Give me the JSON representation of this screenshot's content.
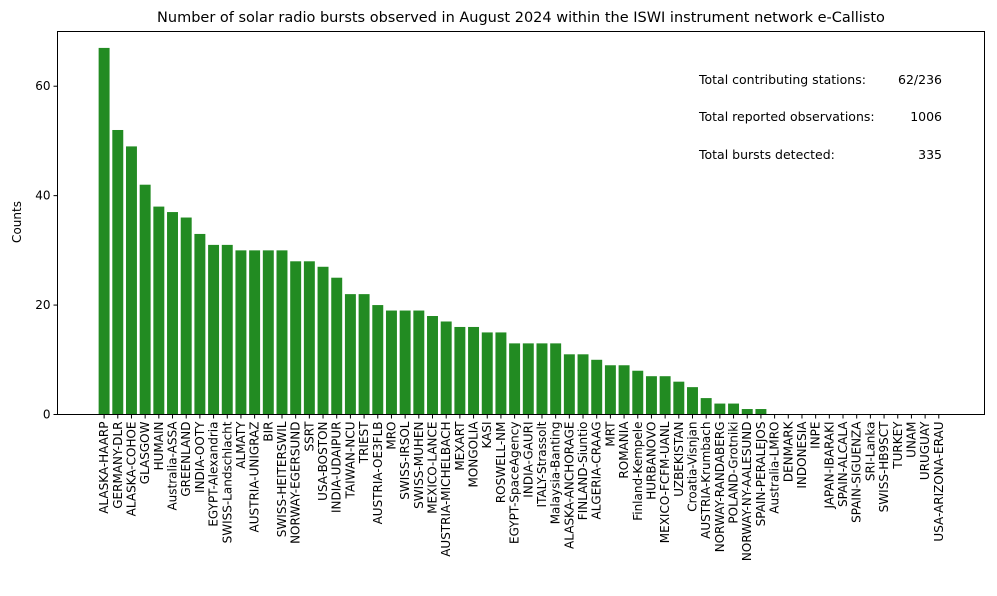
{
  "chart_data": {
    "type": "bar",
    "title": "Number of solar radio bursts observed in August 2024 within the ISWI instrument network e-Callisto",
    "xlabel": "",
    "ylabel": "Counts",
    "ylim": [
      0,
      70
    ],
    "yticks": [
      0,
      20,
      40,
      60
    ],
    "bar_color": "#228b22",
    "grid": false,
    "categories": [
      "ALASKA-HAARP",
      "GERMANY-DLR",
      "ALASKA-COHOE",
      "GLASGOW",
      "HUMAIN",
      "Australia-ASSA",
      "GREENLAND",
      "INDIA-OOTY",
      "EGYPT-Alexandria",
      "SWISS-Landschlacht",
      "ALMATY",
      "AUSTRIA-UNIGRAZ",
      "BIR",
      "SWISS-HEITERSWIL",
      "NORWAY-EGERSUND",
      "SSRT",
      "USA-BOSTON",
      "INDIA-UDAIPUR",
      "TAIWAN-NCU",
      "TRIEST",
      "AUSTRIA-OE3FLB",
      "MRO",
      "SWISS-IRSOL",
      "SWISS-MUHEN",
      "MEXICO-LANCE",
      "AUSTRIA-MICHELBACH",
      "MEXART",
      "MONGOLIA",
      "KASI",
      "ROSWELL-NM",
      "EGYPT-SpaceAgency",
      "INDIA-GAURI",
      "ITALY-Strassolt",
      "Malaysia-Banting",
      "ALASKA-ANCHORAGE",
      "FINLAND-Siuntio",
      "ALGERIA-CRAAG",
      "MRT",
      "ROMANIA",
      "Finland-Kempele",
      "HURBANOVO",
      "MEXICO-FCFM-UANL",
      "UZBEKISTAN",
      "Croatia-Visnjan",
      "AUSTRIA-Krumbach",
      "NORWAY-RANDABERG",
      "POLAND-Grotniki",
      "NORWAY-NY-AALESUND",
      "SPAIN-PERALEJOS",
      "Australia-LMRO",
      "DENMARK",
      "INDONESIA",
      "INPE",
      "JAPAN-IBARAKI",
      "SPAIN-ALCALA",
      "SPAIN-SIGUENZA",
      "SRI-Lanka",
      "SWISS-HB9SCT",
      "TURKEY",
      "UNAM",
      "URUGUAY",
      "USA-ARIZONA-ERAU"
    ],
    "values": [
      67,
      52,
      49,
      42,
      38,
      37,
      36,
      33,
      31,
      31,
      30,
      30,
      30,
      30,
      28,
      28,
      27,
      25,
      22,
      22,
      20,
      19,
      19,
      19,
      18,
      17,
      16,
      16,
      15,
      15,
      13,
      13,
      13,
      13,
      11,
      11,
      10,
      9,
      9,
      8,
      7,
      7,
      6,
      5,
      3,
      2,
      2,
      1,
      1,
      0,
      0,
      0,
      0,
      0,
      0,
      0,
      0,
      0,
      0,
      0,
      0,
      0
    ],
    "annotations": [
      {
        "label": "Total contributing stations:",
        "value": "62/236"
      },
      {
        "label": "Total reported observations:",
        "value": "1006"
      },
      {
        "label": "Total bursts detected:",
        "value": "335"
      }
    ]
  }
}
